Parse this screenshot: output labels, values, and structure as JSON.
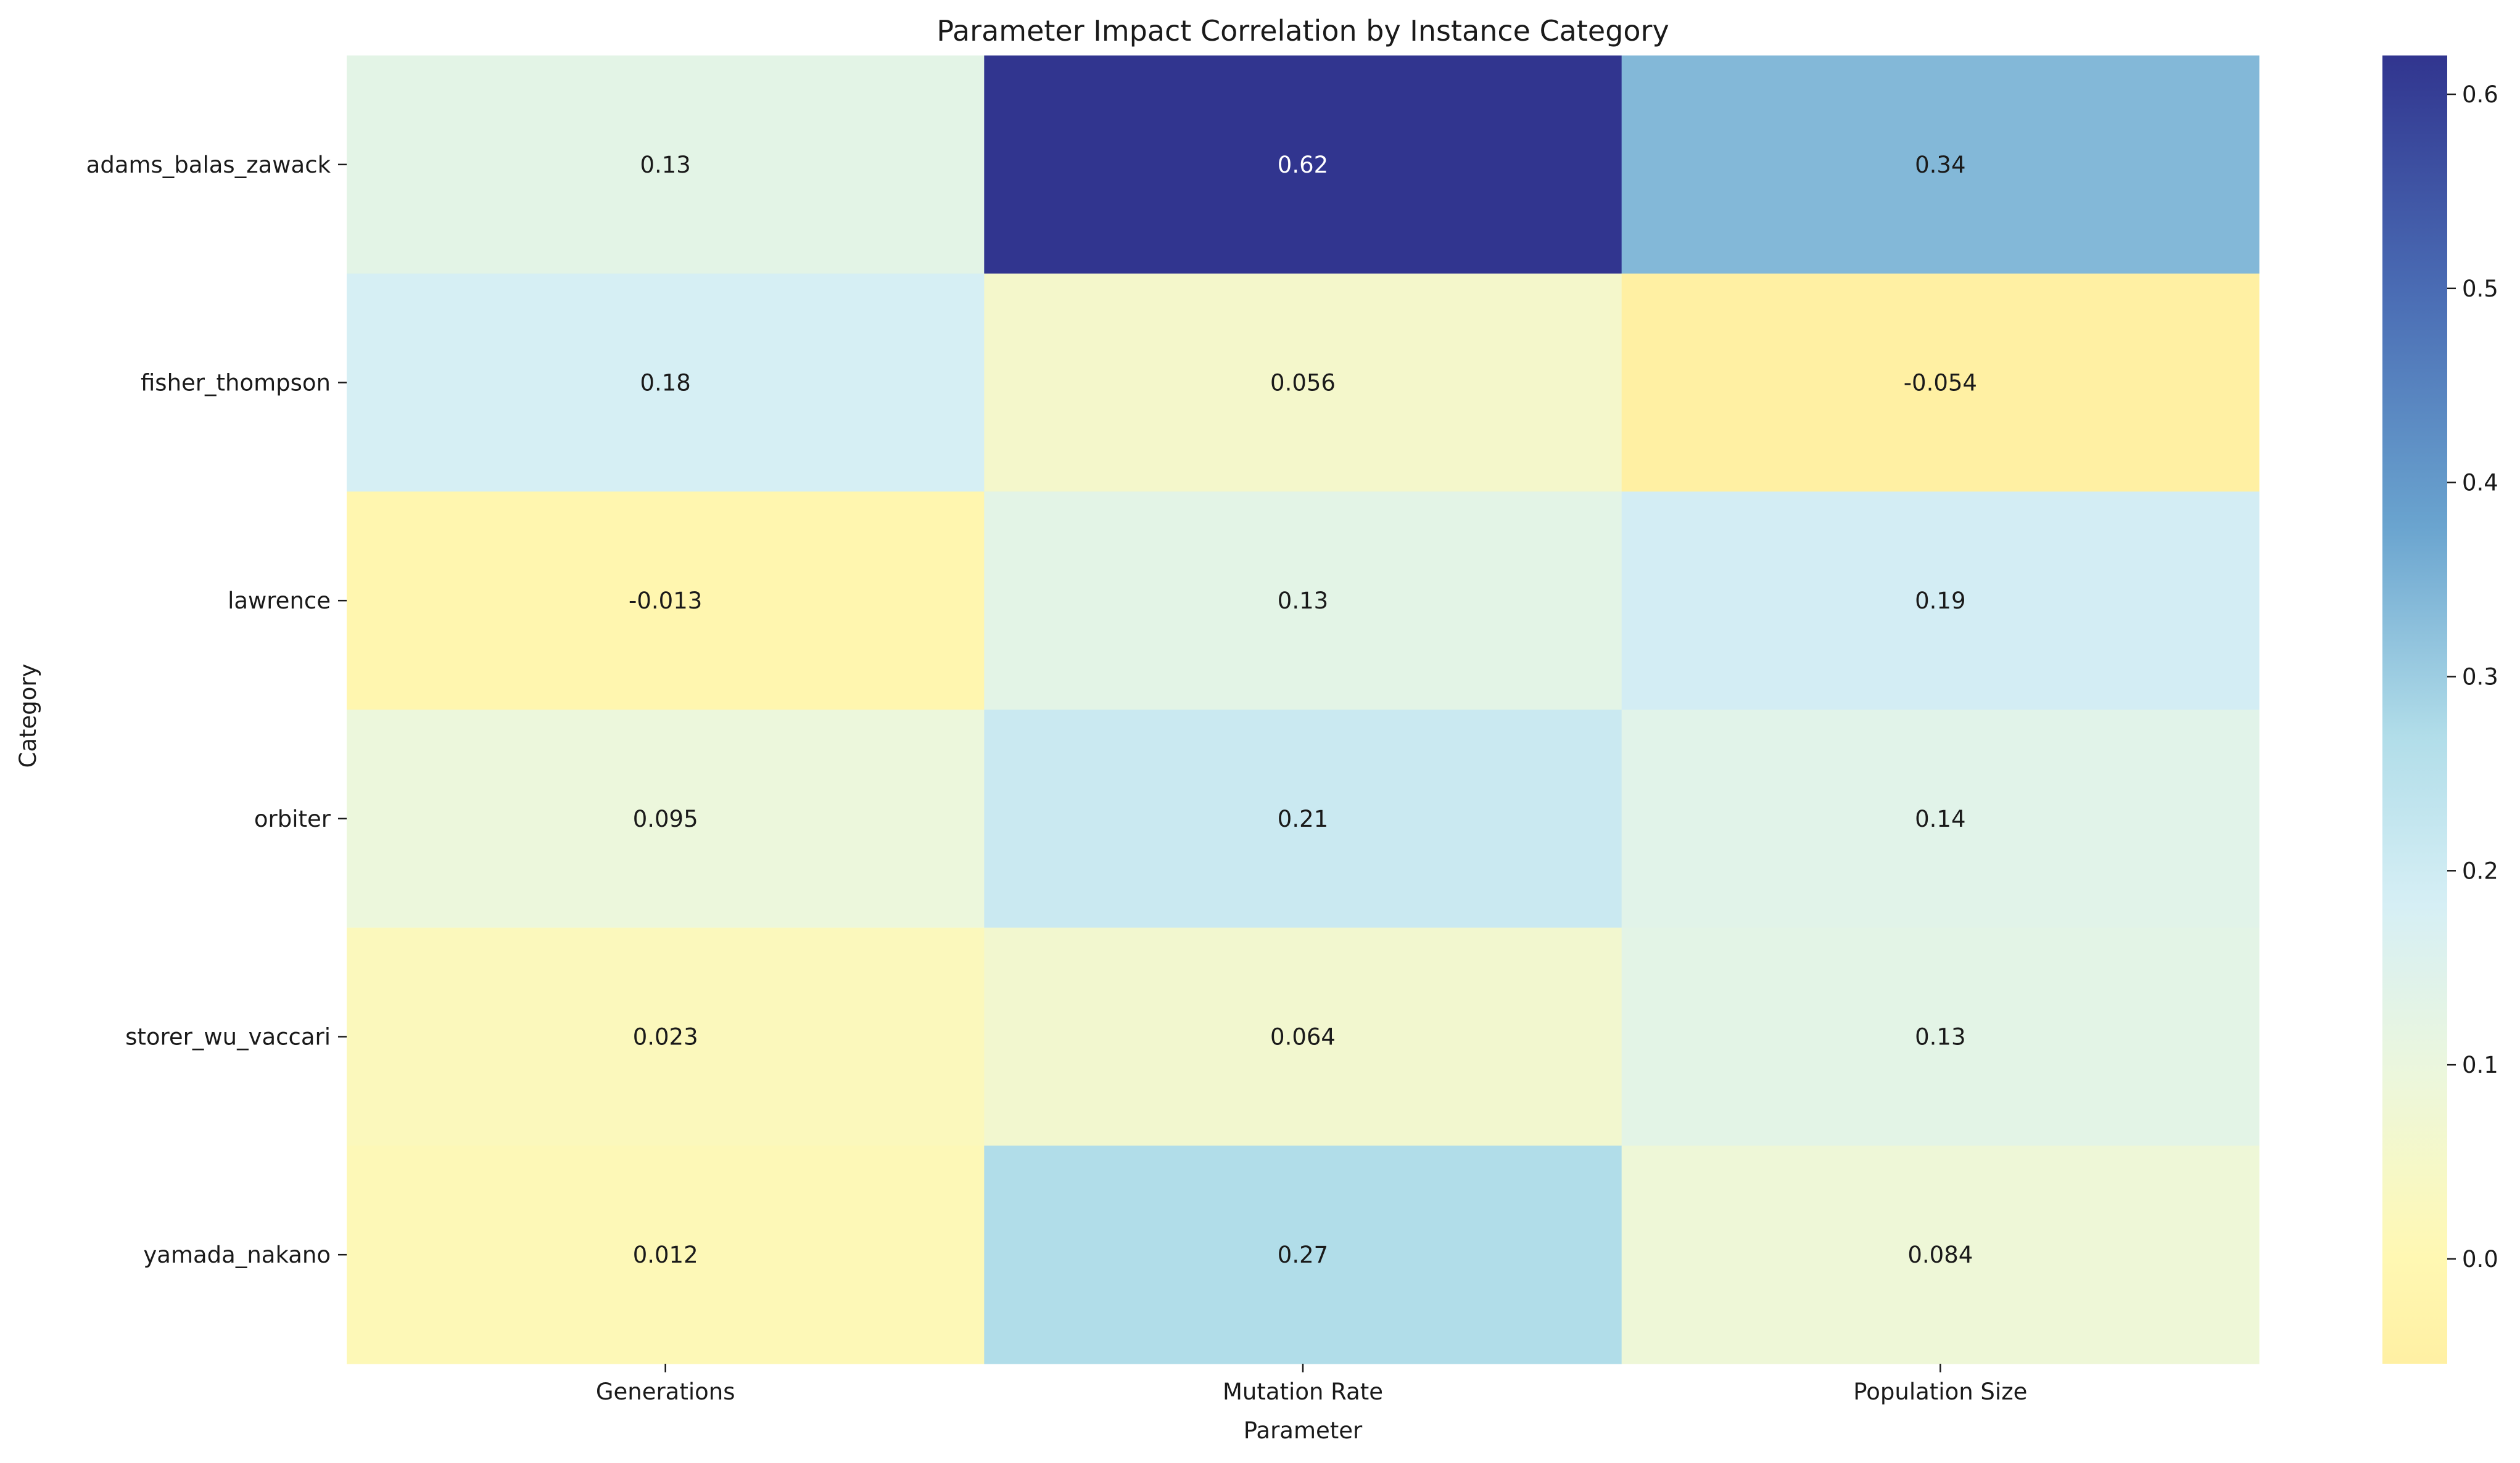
{
  "chart_data": {
    "type": "heatmap",
    "title": "Parameter Impact Correlation by Instance Category",
    "xlabel": "Parameter",
    "ylabel": "Category",
    "x_categories": [
      "Generations",
      "Mutation Rate",
      "Population Size"
    ],
    "y_categories": [
      "adams_balas_zawack",
      "fisher_thompson",
      "lawrence",
      "orbiter",
      "storer_wu_vaccari",
      "yamada_nakano"
    ],
    "values": [
      [
        0.13,
        0.62,
        0.34
      ],
      [
        0.18,
        0.056,
        -0.054
      ],
      [
        -0.013,
        0.13,
        0.19
      ],
      [
        0.095,
        0.21,
        0.14
      ],
      [
        0.023,
        0.064,
        0.13
      ],
      [
        0.012,
        0.27,
        0.084
      ]
    ],
    "value_labels": [
      [
        "0.13",
        "0.62",
        "0.34"
      ],
      [
        "0.18",
        "0.056",
        "-0.054"
      ],
      [
        "-0.013",
        "0.13",
        "0.19"
      ],
      [
        "0.095",
        "0.21",
        "0.14"
      ],
      [
        "0.023",
        "0.064",
        "0.13"
      ],
      [
        "0.012",
        "0.27",
        "0.084"
      ]
    ],
    "colorbar": {
      "colormap": "yellow-green-blue",
      "range": [
        -0.054,
        0.62
      ],
      "ticks": [
        0.0,
        0.1,
        0.2,
        0.3,
        0.4,
        0.5,
        0.6
      ],
      "tick_labels": [
        "0.0",
        "0.1",
        "0.2",
        "0.3",
        "0.4",
        "0.5",
        "0.6"
      ]
    },
    "grid": false,
    "colors": [
      "#fff0a3",
      "#feffc2",
      "#ecf7dc",
      "#dff1f6",
      "#c2e3ee",
      "#86b9d7",
      "#31358f"
    ]
  }
}
